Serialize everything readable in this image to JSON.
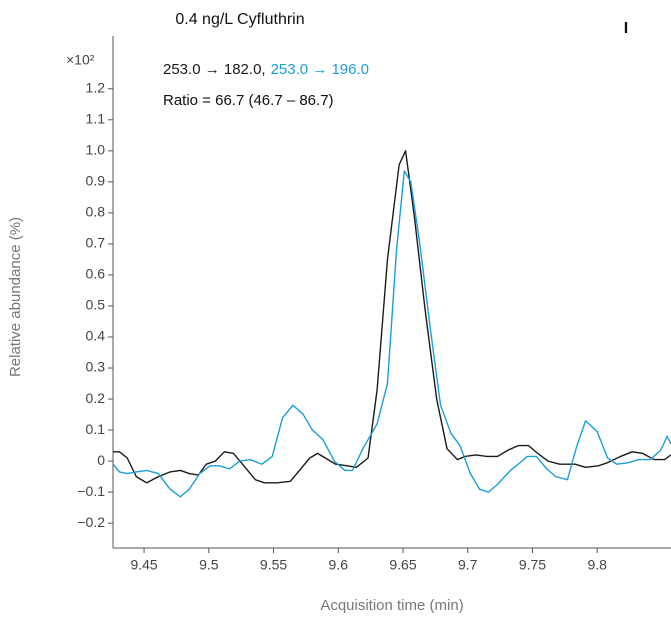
{
  "chart_data": {
    "type": "line",
    "title": "0.4 ng/L Cyfluthrin",
    "panel_label": "I",
    "y_multiplier": "×10²",
    "legend_separator": ",",
    "annotation": "Ratio = 66.7 (46.7 – 86.7)",
    "xlabel": "Acquisition time (min)",
    "ylabel": "Relative abundance (%)",
    "xlim": [
      9.426,
      9.857
    ],
    "ylim": [
      -0.28,
      1.37
    ],
    "xticks": [
      9.45,
      9.5,
      9.55,
      9.6,
      9.65,
      9.7,
      9.75,
      9.8
    ],
    "yticks": [
      1.2,
      1.1,
      {
        "value": 1,
        "label": "1.0"
      },
      0.9,
      0.8,
      0.7,
      0.6,
      0.5,
      0.4,
      0.3,
      0.2,
      0.1,
      0,
      {
        "value": -0.1,
        "label": "−0.1"
      },
      {
        "value": -0.2,
        "label": "−0.2"
      }
    ],
    "series": [
      {
        "name": "253.0 → 182.0",
        "color": "#1a1a1a",
        "x": [
          9.426,
          9.431,
          9.437,
          9.444,
          9.452,
          9.461,
          9.47,
          9.478,
          9.485,
          9.492,
          9.498,
          9.505,
          9.512,
          9.519,
          9.526,
          9.536,
          9.543,
          9.553,
          9.563,
          9.57,
          9.578,
          9.584,
          9.59,
          9.598,
          9.607,
          9.614,
          9.623,
          9.63,
          9.638,
          9.647,
          9.652,
          9.659,
          9.667,
          9.676,
          9.684,
          9.692,
          9.698,
          9.706,
          9.715,
          9.723,
          9.731,
          9.739,
          9.747,
          9.754,
          9.762,
          9.771,
          9.783,
          9.791,
          9.801,
          9.808,
          9.818,
          9.827,
          9.835,
          9.844,
          9.852,
          9.857
        ],
        "values": [
          0.03,
          0.03,
          0.01,
          -0.05,
          -0.07,
          -0.05,
          -0.035,
          -0.03,
          -0.04,
          -0.045,
          -0.01,
          0,
          0.03,
          0.025,
          -0.01,
          -0.06,
          -0.07,
          -0.07,
          -0.065,
          -0.03,
          0.01,
          0.025,
          0.01,
          -0.01,
          -0.015,
          -0.02,
          0.01,
          0.23,
          0.65,
          0.955,
          1.0,
          0.78,
          0.49,
          0.2,
          0.04,
          0.005,
          0.015,
          0.02,
          0.015,
          0.015,
          0.035,
          0.05,
          0.05,
          0.025,
          0,
          -0.01,
          -0.01,
          -0.02,
          -0.015,
          -0.005,
          0.015,
          0.03,
          0.025,
          0.005,
          0.005,
          0.02
        ]
      },
      {
        "name": "253.0 → 196.0",
        "color": "#1a9ed9",
        "x": [
          9.426,
          9.431,
          9.437,
          9.444,
          9.452,
          9.461,
          9.47,
          9.478,
          9.485,
          9.493,
          9.501,
          9.508,
          9.516,
          9.524,
          9.532,
          9.541,
          9.549,
          9.557,
          9.565,
          9.573,
          9.58,
          9.588,
          9.597,
          9.605,
          9.611,
          9.619,
          9.63,
          9.638,
          9.645,
          9.651,
          9.656,
          9.663,
          9.671,
          9.679,
          9.687,
          9.694,
          9.702,
          9.709,
          9.716,
          9.723,
          9.733,
          9.739,
          9.746,
          9.753,
          9.761,
          9.768,
          9.777,
          9.784,
          9.791,
          9.8,
          9.808,
          9.815,
          9.824,
          9.832,
          9.841,
          9.849,
          9.854,
          9.857
        ],
        "values": [
          -0.01,
          -0.035,
          -0.04,
          -0.035,
          -0.03,
          -0.04,
          -0.09,
          -0.115,
          -0.09,
          -0.04,
          -0.015,
          -0.015,
          -0.025,
          0,
          0.005,
          -0.01,
          0.015,
          0.14,
          0.18,
          0.15,
          0.1,
          0.07,
          0,
          -0.03,
          -0.03,
          0.04,
          0.12,
          0.25,
          0.68,
          0.935,
          0.9,
          0.7,
          0.43,
          0.18,
          0.09,
          0.05,
          -0.04,
          -0.09,
          -0.1,
          -0.075,
          -0.03,
          -0.01,
          0.015,
          0.015,
          -0.025,
          -0.05,
          -0.06,
          0.045,
          0.13,
          0.095,
          0.01,
          -0.01,
          -0.005,
          0.005,
          0.005,
          0.035,
          0.08,
          0.055
        ]
      }
    ]
  }
}
